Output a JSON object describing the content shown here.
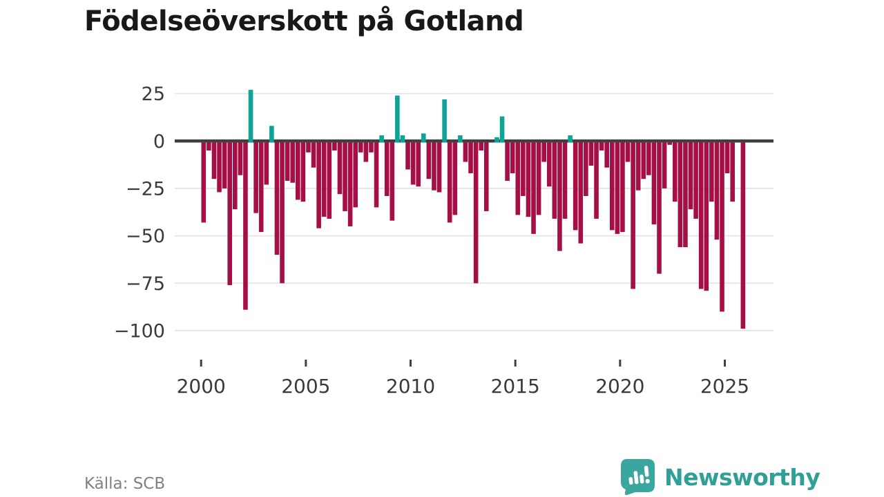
{
  "title": "Födelseöverskott på Gotland",
  "source": {
    "label": "Källa: SCB"
  },
  "branding": {
    "name": "Newsworthy",
    "icon": "newsworthy-speech-bubble-chart-icon",
    "color": "#2fa096"
  },
  "colors": {
    "positive_bar": "#0fa296",
    "negative_bar": "#a60e46",
    "zero_line": "#3f3f3f",
    "gridline": "#e4e4e4",
    "axis_text": "#3a3a3a",
    "background": "#ffffff"
  },
  "chart_data": {
    "type": "bar",
    "title": "Födelseöverskott på Gotland",
    "x_unit": "quarter",
    "start_year": 2000,
    "quarters_per_year": 4,
    "ylim": [
      -105,
      30
    ],
    "grid": true,
    "y_ticks": [
      {
        "value": 25,
        "label": "25"
      },
      {
        "value": 0,
        "label": "0"
      },
      {
        "value": -25,
        "label": "−25"
      },
      {
        "value": -50,
        "label": "−50"
      },
      {
        "value": -75,
        "label": "−75"
      },
      {
        "value": -100,
        "label": "−100"
      }
    ],
    "x_ticks": [
      {
        "year": 2000,
        "label": "2000"
      },
      {
        "year": 2005,
        "label": "2005"
      },
      {
        "year": 2010,
        "label": "2010"
      },
      {
        "year": 2015,
        "label": "2015"
      },
      {
        "year": 2020,
        "label": "2020"
      },
      {
        "year": 2025,
        "label": "2025"
      }
    ],
    "values": [
      -43,
      -5,
      -20,
      -27,
      -25,
      -76,
      -36,
      -18,
      -89,
      27,
      -38,
      -48,
      -23,
      8,
      -60,
      -75,
      -21,
      -22,
      -31,
      -32,
      -6,
      -14,
      -46,
      -40,
      -41,
      -5,
      -28,
      -37,
      -45,
      -35,
      -6,
      -11,
      -6,
      -35,
      3,
      -29,
      -42,
      24,
      3,
      -15,
      -23,
      -24,
      4,
      -20,
      -26,
      -27,
      22,
      -43,
      -39,
      3,
      -11,
      -17,
      -75,
      -5,
      -37,
      0,
      2,
      13,
      -21,
      -17,
      -39,
      -29,
      -40,
      -49,
      -39,
      -11,
      -24,
      -41,
      -58,
      -41,
      3,
      -47,
      -54,
      -29,
      -13,
      -41,
      -5,
      -14,
      -47,
      -49,
      -48,
      -11,
      -78,
      -26,
      -20,
      -18,
      -44,
      -70,
      -25,
      -2,
      -32,
      -56,
      -56,
      -36,
      -41,
      -78,
      -79,
      -32,
      -52,
      -90,
      -17,
      -32,
      0,
      -99
    ]
  }
}
